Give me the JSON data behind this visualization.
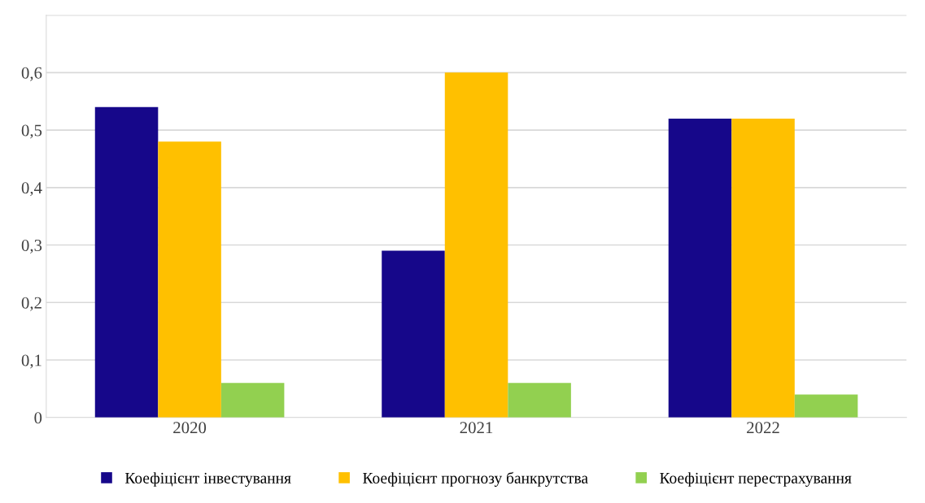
{
  "chart_data": {
    "type": "bar",
    "categories": [
      "2020",
      "2021",
      "2022"
    ],
    "series": [
      {
        "name": "Коефіцієнт інвестування",
        "color": "#16078a",
        "values": [
          0.54,
          0.29,
          0.52
        ]
      },
      {
        "name": "Коефіцієнт прогнозу банкрутства",
        "color": "#ffc000",
        "values": [
          0.48,
          0.6,
          0.52
        ]
      },
      {
        "name": "Коефіцієнт перестрахування",
        "color": "#92d050",
        "values": [
          0.06,
          0.06,
          0.04
        ]
      }
    ],
    "ylim": [
      0,
      0.7
    ],
    "yticks": [
      {
        "value": 0,
        "label": "0"
      },
      {
        "value": 0.1,
        "label": "0,1"
      },
      {
        "value": 0.2,
        "label": "0,2"
      },
      {
        "value": 0.3,
        "label": "0,3"
      },
      {
        "value": 0.4,
        "label": "0,4"
      },
      {
        "value": 0.5,
        "label": "0,5"
      },
      {
        "value": 0.6,
        "label": "0,6"
      },
      {
        "value": 0.7,
        "label": null
      }
    ],
    "grid": "y",
    "legend": "bottom"
  }
}
